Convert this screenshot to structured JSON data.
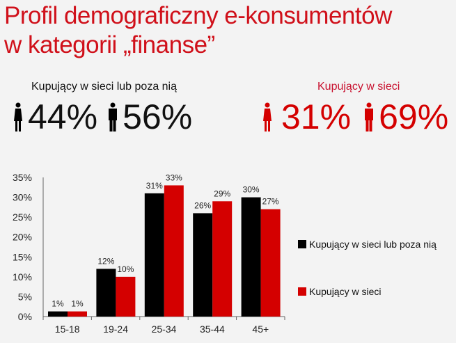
{
  "title_line1": "Profil demograficzny e-konsumentów",
  "title_line2": "w kategorii „finanse”",
  "colors": {
    "black": "#000000",
    "red": "#d40000",
    "title": "#d0101a"
  },
  "all_buyers": {
    "label": "Kupujący w sieci lub poza nią",
    "female": "44%",
    "male": "56%",
    "female_icon": "woman-icon",
    "male_icon": "man-icon"
  },
  "online_buyers": {
    "label": "Kupujący w sieci",
    "female": "31%",
    "male": "69%",
    "female_icon": "woman-icon",
    "male_icon": "man-icon"
  },
  "chart_data": {
    "type": "bar",
    "categories": [
      "15-18",
      "19-24",
      "25-34",
      "35-44",
      "45+"
    ],
    "series": [
      {
        "name": "Kupujący w sieci lub poza nią",
        "values": [
          1,
          12,
          31,
          26,
          30
        ],
        "labels": [
          "1%",
          "12%",
          "31%",
          "26%",
          "30%"
        ]
      },
      {
        "name": "Kupujący w sieci",
        "values": [
          1,
          10,
          33,
          29,
          27
        ],
        "labels": [
          "1%",
          "10%",
          "33%",
          "29%",
          "27%"
        ]
      }
    ],
    "yticks": [
      "0%",
      "5%",
      "10%",
      "15%",
      "20%",
      "25%",
      "30%",
      "35%"
    ],
    "ylim": [
      0,
      35
    ],
    "legend": "right",
    "grid": false
  }
}
